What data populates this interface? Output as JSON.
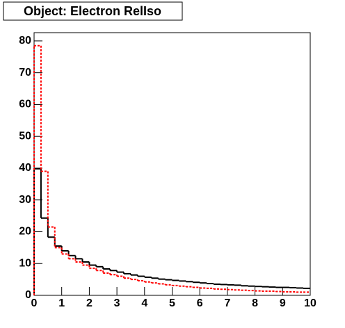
{
  "chart_data": {
    "type": "histogram",
    "title": "Object: Electron RelIso",
    "bins": [
      0,
      0.25,
      0.5,
      0.75,
      1,
      1.25,
      1.5,
      1.75,
      2,
      2.25,
      2.5,
      2.75,
      3,
      3.25,
      3.5,
      3.75,
      4,
      4.25,
      4.5,
      4.75,
      5,
      5.25,
      5.5,
      5.75,
      6,
      6.25,
      6.5,
      6.75,
      7,
      7.25,
      7.5,
      7.75,
      8,
      8.25,
      8.5,
      8.75,
      9,
      9.25,
      9.5,
      9.75,
      10
    ],
    "series": [
      {
        "color": "#000000",
        "values": [
          39.8,
          24.3,
          18.3,
          15.5,
          14,
          12.5,
          11.5,
          10.5,
          9.5,
          9,
          8.3,
          7.8,
          7.3,
          6.8,
          6.4,
          6,
          5.7,
          5.4,
          5.1,
          4.9,
          4.7,
          4.5,
          4.3,
          4.1,
          3.9,
          3.7,
          3.5,
          3.4,
          3.3,
          3.2,
          3,
          2.9,
          2.8,
          2.7,
          2.6,
          2.5,
          2.5,
          2.4,
          2.3,
          2.2
        ]
      },
      {
        "color": "#ff0000",
        "dashed": true,
        "values": [
          78.5,
          39,
          21.5,
          15,
          13,
          11.5,
          10.5,
          9.5,
          8.5,
          7.8,
          7,
          6.5,
          6,
          5.4,
          5,
          4.6,
          4.2,
          3.9,
          3.6,
          3.3,
          3.1,
          2.9,
          2.7,
          2.5,
          2.3,
          2.2,
          2,
          1.9,
          1.8,
          1.7,
          1.6,
          1.5,
          1.4,
          1.3,
          1.3,
          1.2,
          1.1,
          1.1,
          1,
          1
        ]
      }
    ],
    "xlim": [
      0,
      10
    ],
    "ylim": [
      0,
      82.6
    ],
    "xticks": [
      0,
      1,
      2,
      3,
      4,
      5,
      6,
      7,
      8,
      9,
      10
    ],
    "yticks": [
      0,
      10,
      20,
      30,
      40,
      50,
      60,
      70,
      80
    ]
  }
}
